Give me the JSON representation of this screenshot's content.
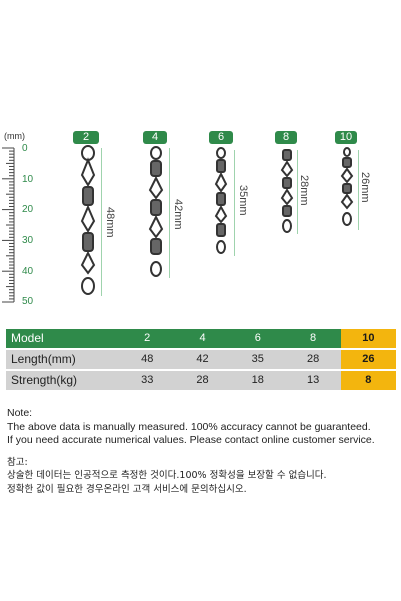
{
  "ruler": {
    "unit": "(mm)",
    "ticks": [
      "0",
      "10",
      "20",
      "30",
      "40",
      "50"
    ]
  },
  "models": [
    {
      "tag": "2",
      "length_label": "48mm"
    },
    {
      "tag": "4",
      "length_label": "42mm"
    },
    {
      "tag": "6",
      "length_label": "35mm"
    },
    {
      "tag": "8",
      "length_label": "28mm"
    },
    {
      "tag": "10",
      "length_label": "26mm"
    }
  ],
  "table": {
    "model_label": "Model",
    "length_label": "Length(mm)",
    "strength_label": "Strength(kg)",
    "models": [
      "2",
      "4",
      "6",
      "8",
      "10"
    ],
    "lengths": [
      "48",
      "42",
      "35",
      "28",
      "26"
    ],
    "strengths": [
      "33",
      "28",
      "18",
      "13",
      "8"
    ]
  },
  "notes": {
    "en_title": "Note:",
    "en_line1": "The above data is manually measured. 100% accuracy cannot be guaranteed.",
    "en_line2": "If you need accurate numerical values. Please contact online customer service.",
    "ko_title": "참고:",
    "ko_line1": "상술한 데이터는 인공적으로 측정한 것이다.100% 정확성을 보장할 수 없습니다.",
    "ko_line2": "정확한 값이 필요한 경우온라인 고객 서비스에 문의하십시오."
  },
  "colors": {
    "accent": "#2f8a4a",
    "highlight": "#f3b50e",
    "row_gray": "#d2d2d2"
  }
}
